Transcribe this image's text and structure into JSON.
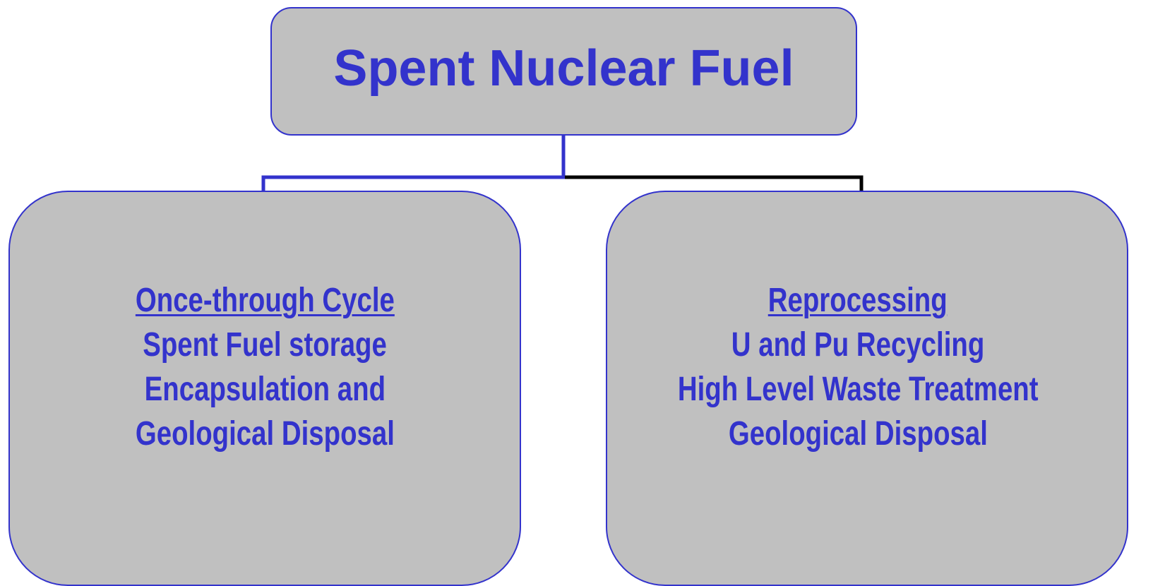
{
  "nodes": [
    {
      "label": "Spent Nuclear Fuel"
    },
    {
      "title": "Once-through Cycle",
      "lines": [
        "Spent Fuel storage",
        "Encapsulation and",
        "Geological Disposal"
      ]
    },
    {
      "title": "Reprocessing",
      "lines": [
        "U and Pu Recycling",
        "High Level Waste Treatment",
        "Geological Disposal"
      ]
    }
  ]
}
